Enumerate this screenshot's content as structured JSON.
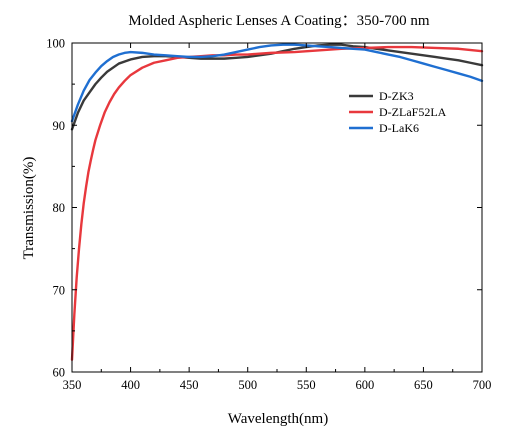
{
  "chart_data": {
    "type": "line",
    "title": "Molded Aspheric Lenses A Coating：350-700 nm",
    "xlabel": "Wavelength(nm)",
    "ylabel": "Transmission(%)",
    "xlim": [
      350,
      700
    ],
    "ylim": [
      60,
      100
    ],
    "xticks": [
      350,
      400,
      450,
      500,
      550,
      600,
      650,
      700
    ],
    "yticks": [
      60,
      70,
      80,
      90,
      100
    ],
    "grid": false,
    "legend_position": "upper-right",
    "series": [
      {
        "name": "D-ZK3",
        "color": "#3a3a3a",
        "x": [
          350,
          355,
          360,
          365,
          370,
          375,
          380,
          390,
          400,
          410,
          420,
          430,
          440,
          450,
          460,
          470,
          480,
          490,
          500,
          510,
          520,
          530,
          540,
          550,
          560,
          570,
          580,
          590,
          600,
          610,
          620,
          630,
          640,
          650,
          660,
          670,
          680,
          690,
          700
        ],
        "y": [
          89.5,
          91.5,
          93.0,
          94.0,
          95.0,
          95.8,
          96.5,
          97.5,
          98.0,
          98.3,
          98.4,
          98.4,
          98.3,
          98.2,
          98.1,
          98.1,
          98.1,
          98.2,
          98.3,
          98.5,
          98.7,
          99.0,
          99.3,
          99.5,
          99.7,
          99.8,
          99.8,
          99.6,
          99.5,
          99.3,
          99.1,
          98.9,
          98.7,
          98.5,
          98.3,
          98.1,
          97.9,
          97.6,
          97.3
        ]
      },
      {
        "name": "D-ZLaF52LA",
        "color": "#e8383d",
        "x": [
          350,
          352,
          354,
          356,
          358,
          360,
          362,
          364,
          366,
          368,
          370,
          374,
          378,
          382,
          386,
          390,
          395,
          400,
          410,
          420,
          430,
          440,
          450,
          460,
          470,
          480,
          490,
          500,
          520,
          540,
          560,
          580,
          600,
          620,
          640,
          660,
          680,
          700
        ],
        "y": [
          61.5,
          67.0,
          71.5,
          75.0,
          78.0,
          80.5,
          82.5,
          84.3,
          85.7,
          87.0,
          88.2,
          90.0,
          91.6,
          92.8,
          93.8,
          94.6,
          95.4,
          96.1,
          97.0,
          97.6,
          97.9,
          98.2,
          98.3,
          98.4,
          98.5,
          98.5,
          98.6,
          98.6,
          98.8,
          98.9,
          99.1,
          99.3,
          99.4,
          99.5,
          99.5,
          99.4,
          99.3,
          99.0
        ]
      },
      {
        "name": "D-LaK6",
        "color": "#1f6fd1",
        "x": [
          350,
          355,
          360,
          365,
          370,
          375,
          380,
          385,
          390,
          395,
          400,
          410,
          420,
          430,
          440,
          450,
          460,
          470,
          480,
          490,
          500,
          510,
          520,
          530,
          540,
          550,
          560,
          570,
          580,
          590,
          600,
          610,
          620,
          630,
          640,
          650,
          660,
          670,
          680,
          690,
          700
        ],
        "y": [
          90.5,
          92.5,
          94.2,
          95.5,
          96.4,
          97.2,
          97.8,
          98.3,
          98.6,
          98.8,
          98.9,
          98.8,
          98.6,
          98.5,
          98.4,
          98.3,
          98.3,
          98.4,
          98.6,
          98.9,
          99.2,
          99.5,
          99.7,
          99.8,
          99.8,
          99.7,
          99.6,
          99.5,
          99.4,
          99.3,
          99.2,
          98.9,
          98.6,
          98.3,
          97.9,
          97.5,
          97.1,
          96.7,
          96.3,
          95.9,
          95.4
        ]
      }
    ]
  }
}
